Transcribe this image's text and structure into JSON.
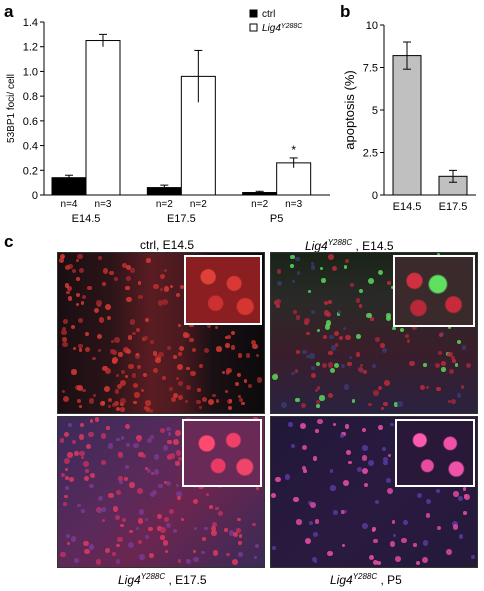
{
  "panels": {
    "a": "a",
    "b": "b",
    "c": "c"
  },
  "chart_data": [
    {
      "type": "bar",
      "panel": "a",
      "ylabel": "53BP1 foci/ cell",
      "ylim": [
        0,
        1.4
      ],
      "yticks": [
        "0",
        "0.2",
        "0.4",
        "0.6",
        "0.8",
        "1.0",
        "1.2",
        "1.4"
      ],
      "categories": [
        "E14.5",
        "E17.5",
        "P5"
      ],
      "legend": {
        "placement": "top-right",
        "ctrl": "ctrl",
        "mut_base": "Lig4",
        "mut_sup": "Y288C"
      },
      "series": [
        {
          "name": "ctrl",
          "color": "#000000",
          "values": [
            0.14,
            0.06,
            0.02
          ],
          "errors": [
            0.02,
            0.02,
            0.01
          ],
          "n": [
            "n=4",
            "n=2",
            "n=2"
          ]
        },
        {
          "name": "Lig4Y288C",
          "color": "#ffffff",
          "values": [
            1.25,
            0.96,
            0.26
          ],
          "errors": [
            0.05,
            0.21,
            0.04
          ],
          "n": [
            "n=3",
            "n=2",
            "n=3"
          ]
        }
      ],
      "annotation": "*"
    },
    {
      "type": "bar",
      "panel": "b",
      "ylabel": "apoptosis (%)",
      "ylim": [
        0,
        10
      ],
      "yticks": [
        "0",
        "2.5",
        "5",
        "7.5",
        "10"
      ],
      "categories": [
        "E14.5",
        "E17.5"
      ],
      "color": "#c0c0c0",
      "values": [
        8.2,
        1.1
      ],
      "errors": [
        0.8,
        0.35
      ]
    }
  ],
  "micrographs": {
    "tl": {
      "caption_pre": "ctrl,  E14.5"
    },
    "tr": {
      "caption_base": "Lig4",
      "caption_sup": "Y288C",
      "caption_post": " , E14.5"
    },
    "bl": {
      "caption_base": "Lig4",
      "caption_sup": "Y288C",
      "caption_post": " , E17.5"
    },
    "br": {
      "caption_base": "Lig4",
      "caption_sup": "Y288C",
      "caption_post": " , P5"
    }
  }
}
